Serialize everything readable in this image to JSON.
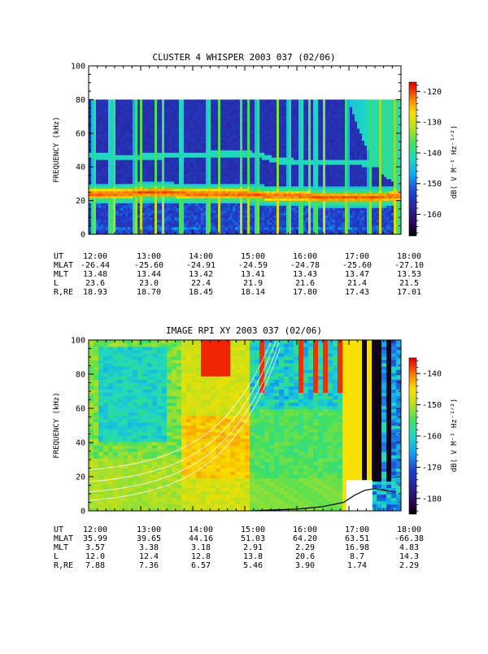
{
  "chart_data": [
    {
      "type": "heatmap",
      "title": "CLUSTER 4 WHISPER 2003 037 (02/06)",
      "ylabel": "FREQUENCY (kHz)",
      "ylim": [
        0,
        100
      ],
      "y_ticks": [
        "0",
        "20",
        "40",
        "60",
        "80",
        "100"
      ],
      "data_ymax": 80,
      "xlim_hours": [
        12,
        18
      ],
      "x_ticks": [
        "12:00",
        "13:00",
        "14:00",
        "15:00",
        "16:00",
        "17:00",
        "18:00"
      ],
      "colorbar": {
        "label": "dB( V M⁻¹ Hz⁻¹ᐟ²)",
        "range": [
          -167,
          -117
        ],
        "ticks": [
          "-120",
          "-130",
          "-140",
          "-150",
          "-160"
        ],
        "tick_values": [
          -120,
          -130,
          -140,
          -150,
          -160
        ]
      },
      "features": {
        "plasma_line_khz": [
          [
            12.0,
            24
          ],
          [
            12.5,
            24
          ],
          [
            13.0,
            25
          ],
          [
            13.5,
            25
          ],
          [
            14.0,
            24
          ],
          [
            14.5,
            24
          ],
          [
            15.0,
            24
          ],
          [
            15.5,
            23
          ],
          [
            16.0,
            23
          ],
          [
            16.5,
            22
          ],
          [
            17.0,
            22
          ],
          [
            17.5,
            22
          ],
          [
            18.0,
            23
          ]
        ],
        "second_line_khz": [
          [
            12.0,
            47
          ],
          [
            12.5,
            46
          ],
          [
            13.0,
            46
          ],
          [
            13.5,
            47
          ],
          [
            14.0,
            47
          ],
          [
            14.5,
            48
          ],
          [
            15.0,
            48
          ],
          [
            15.3,
            47
          ],
          [
            15.6,
            44
          ],
          [
            16.0,
            43
          ],
          [
            16.5,
            43
          ],
          [
            17.0,
            43
          ],
          [
            17.5,
            42
          ],
          [
            18.0,
            41
          ]
        ],
        "spike_times_hours": [
          12.1,
          12.42,
          12.48,
          12.9,
          13.0,
          13.28,
          13.42,
          13.78,
          14.3,
          14.5,
          14.92,
          15.08,
          15.24,
          15.63,
          15.85,
          16.08,
          16.25,
          16.36,
          16.52,
          16.96,
          17.4,
          17.6,
          17.88,
          17.95
        ]
      },
      "table": {
        "labels": [
          "UT",
          "MLAT",
          "MLT",
          "L",
          "R,RE"
        ],
        "rows": [
          [
            "12:00",
            "13:00",
            "14:00",
            "15:00",
            "16:00",
            "17:00",
            "18:00"
          ],
          [
            "-26.44",
            "-25.60",
            "-24.91",
            "-24.59",
            "-24.78",
            "-25.60",
            "-27.10"
          ],
          [
            "13.48",
            "13.44",
            "13.42",
            "13.41",
            "13.43",
            "13.47",
            "13.53"
          ],
          [
            "23.6",
            "23.0",
            "22.4",
            "21.9",
            "21.6",
            "21.4",
            "21.5"
          ],
          [
            "18.93",
            "18.70",
            "18.45",
            "18.14",
            "17.80",
            "17.43",
            "17.01"
          ]
        ]
      }
    },
    {
      "type": "heatmap",
      "title": "IMAGE RPI XY 2003 037 (02/06)",
      "ylabel": "FREQUENCY (kHz)",
      "ylim": [
        0,
        100
      ],
      "y_ticks": [
        "0",
        "20",
        "40",
        "60",
        "80",
        "100"
      ],
      "data_ymax": 100,
      "xlim_hours": [
        12,
        18
      ],
      "x_ticks": [
        "12:00",
        "13:00",
        "14:00",
        "15:00",
        "16:00",
        "17:00",
        "18:00"
      ],
      "colorbar": {
        "label": "dB( V M⁻¹ Hz⁻¹ᐟ²)",
        "range": [
          -185,
          -135
        ],
        "ticks": [
          "-140",
          "-150",
          "-160",
          "-170",
          "-180"
        ],
        "tick_values": [
          -140,
          -150,
          -160,
          -170,
          -180
        ]
      },
      "features": {
        "white_curve_offsets_khz": [
          6,
          11,
          17,
          24
        ],
        "black_bands_hours": [
          [
            17.22,
            17.32
          ],
          [
            17.45,
            17.6
          ],
          [
            17.68,
            17.78
          ]
        ],
        "white_box": {
          "x": [
            16.95,
            17.45
          ],
          "y": [
            0,
            18
          ]
        },
        "lower_black_curve_khz": [
          [
            15.1,
            0
          ],
          [
            15.5,
            0.5
          ],
          [
            16.0,
            1.0
          ],
          [
            16.5,
            2.5
          ],
          [
            16.9,
            5
          ],
          [
            17.1,
            9
          ],
          [
            17.3,
            12
          ],
          [
            17.5,
            13
          ],
          [
            17.7,
            12
          ],
          [
            17.9,
            11
          ]
        ]
      },
      "table": {
        "labels": [
          "UT",
          "MLAT",
          "MLT",
          "L",
          "R,RE"
        ],
        "rows": [
          [
            "12:00",
            "13:00",
            "14:00",
            "15:00",
            "16:00",
            "17:00",
            "18:00"
          ],
          [
            "35.99",
            "39.65",
            "44.16",
            "51.03",
            "64.20",
            "63.51",
            "-66.38"
          ],
          [
            "3.57",
            "3.38",
            "3.18",
            "2.91",
            "2.29",
            "16.98",
            "4.83"
          ],
          [
            "12.0",
            "12.4",
            "12.8",
            "13.8",
            "20.6",
            "8.7",
            "14.3"
          ],
          [
            "7.88",
            "7.36",
            "6.57",
            "5.46",
            "3.90",
            "1.74",
            "2.29"
          ]
        ]
      }
    }
  ]
}
